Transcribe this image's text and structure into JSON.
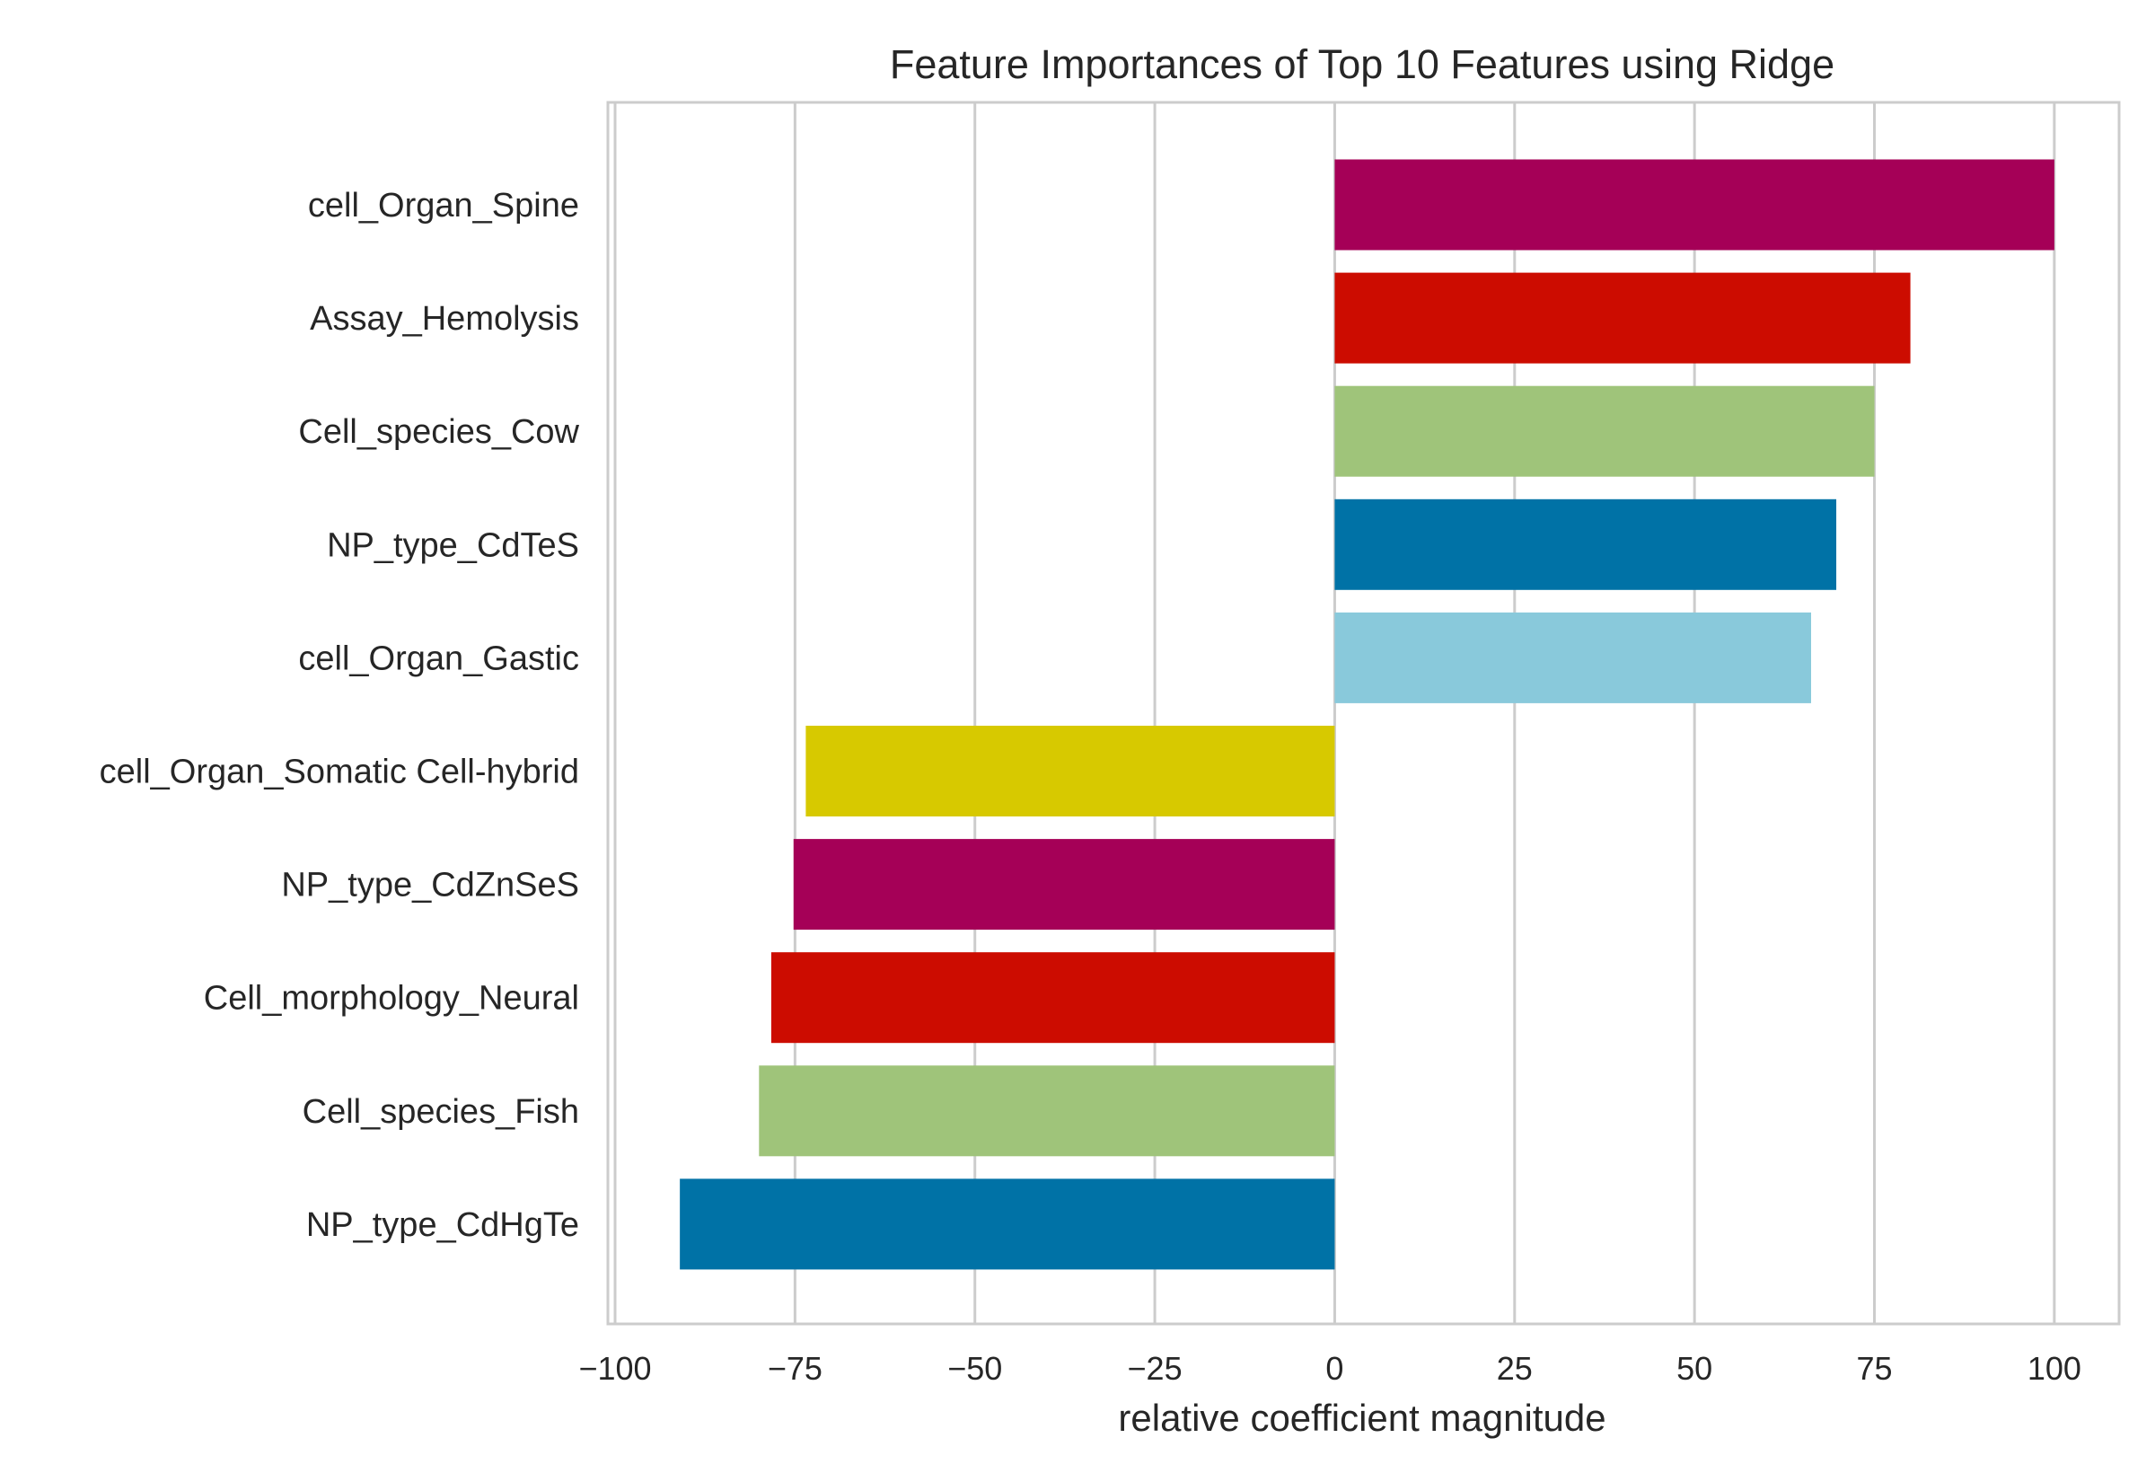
{
  "chart_data": {
    "type": "bar",
    "orientation": "horizontal",
    "title": "Feature Importances of Top 10 Features using Ridge",
    "xlabel": "relative coefficient magnitude",
    "ylabel": "",
    "xlim": [
      -101,
      109
    ],
    "xticks": [
      -100,
      -75,
      -50,
      -25,
      0,
      25,
      50,
      75,
      100
    ],
    "xtick_labels": [
      "−100",
      "−75",
      "−50",
      "−25",
      "0",
      "25",
      "50",
      "75",
      "100"
    ],
    "grid": "vertical",
    "categories": [
      "cell_Organ_Spine",
      "Assay_Hemolysis",
      "Cell_species_Cow",
      "NP_type_CdTeS",
      "cell_Organ_Gastic",
      "cell_Organ_Somatic Cell-hybrid",
      "NP_type_CdZnSeS",
      "Cell_morphology_Neural",
      "Cell_species_Fish",
      "NP_type_CdHgTe"
    ],
    "values": [
      100,
      80,
      75,
      69.7,
      66.2,
      -73.5,
      -75.2,
      -78.3,
      -80,
      -91
    ],
    "colors": [
      "#a50057",
      "#cc0c00",
      "#9fc47a",
      "#0072a6",
      "#89c9db",
      "#d7c900",
      "#a50057",
      "#cc0c00",
      "#9fc47a",
      "#0072a6"
    ]
  }
}
